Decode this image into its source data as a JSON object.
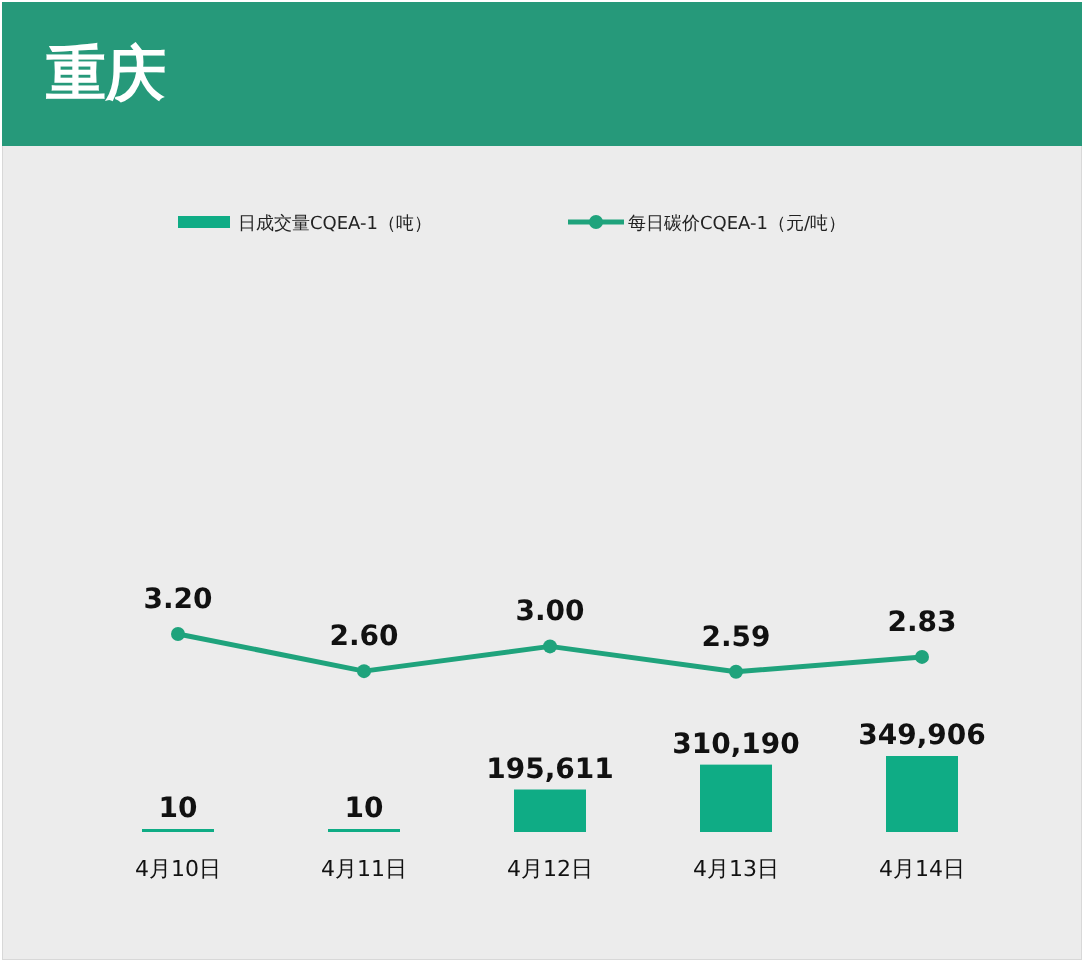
{
  "chart_data": [
    {
      "type": "other",
      "title": "重庆"
    },
    {
      "type": "bar",
      "categories": [
        "4月10日",
        "4月11日",
        "4月12日",
        "4月13日",
        "4月14日"
      ],
      "series": [
        {
          "name": "日成交量CQEA-1（吨）",
          "color": "#0fac85",
          "values": [
            10,
            10,
            195611,
            310190,
            349906
          ],
          "value_labels": [
            "10",
            "10",
            "195,611",
            "310,190",
            "349,906"
          ]
        }
      ],
      "legend": "top"
    },
    {
      "type": "line",
      "categories": [
        null,
        null,
        null,
        null,
        null
      ],
      "series": [
        {
          "name": "每日碳价CQEA-1（元/吨）",
          "color": "#1fa37c",
          "values": [
            3.2,
            2.6,
            3.0,
            2.59,
            2.83
          ],
          "value_labels": [
            "3.20",
            "2.60",
            "3.00",
            "2.59",
            "2.83"
          ]
        }
      ],
      "legend": "top",
      "marker": "circle",
      "line_style": "solid"
    }
  ]
}
